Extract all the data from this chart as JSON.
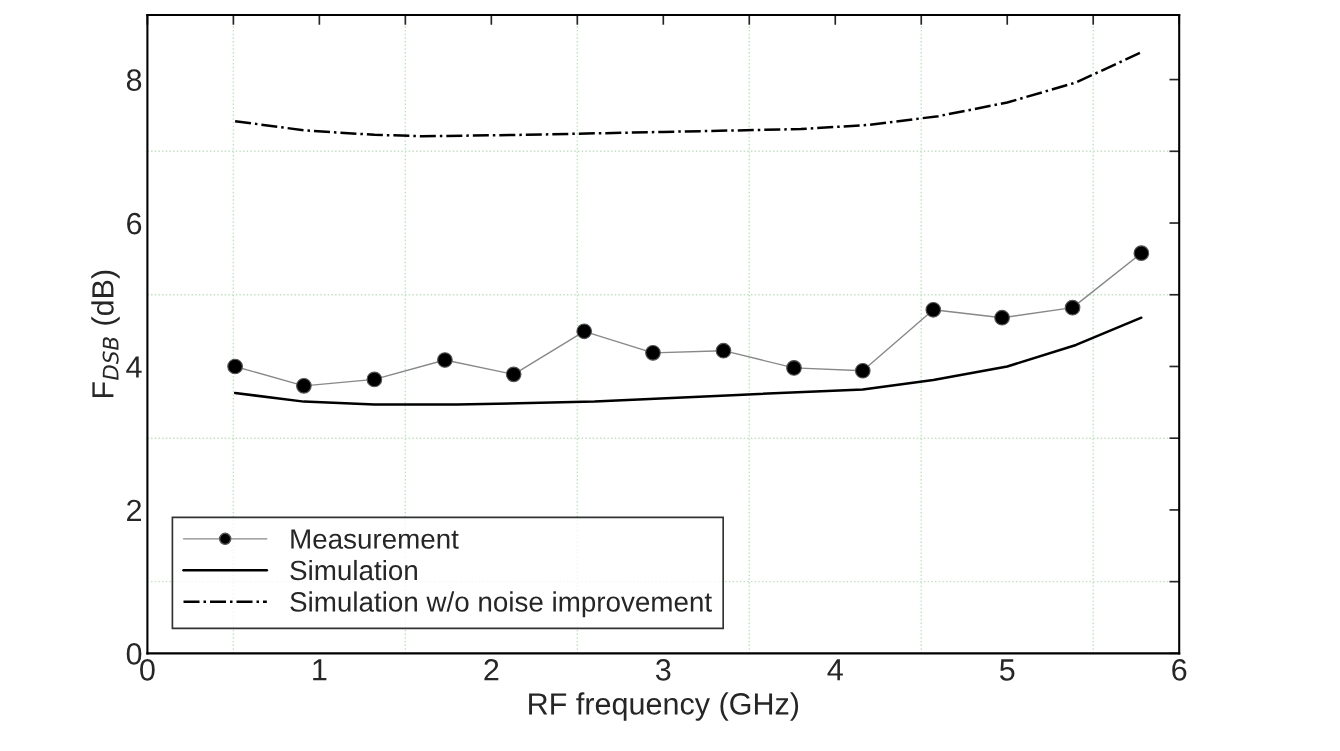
{
  "chart_data": {
    "type": "line",
    "xlabel": "RF frequency (GHz)",
    "ylabel": "F$_{DSB}$ (dB)",
    "xlim": [
      0,
      6
    ],
    "ylim": [
      0,
      8.9
    ],
    "xticks": [
      0,
      {
        "value": 0.5,
        "label": null
      },
      1,
      {
        "value": 1.5,
        "label": null
      },
      2,
      {
        "value": 2.5,
        "label": null
      },
      3,
      {
        "value": 3.5,
        "label": null
      },
      4,
      {
        "value": 4.5,
        "label": null
      },
      5,
      {
        "value": 5.5,
        "label": null
      },
      6
    ],
    "yticks": [
      0,
      {
        "value": 1,
        "label": null
      },
      2,
      {
        "value": 3,
        "label": null
      },
      4,
      {
        "value": 5,
        "label": null
      },
      6,
      {
        "value": 7,
        "label": null
      },
      8
    ],
    "grid": true,
    "legend": "bottom left",
    "series": [
      {
        "name": "Measurement",
        "color": "#000000",
        "marker": "circle",
        "line_style": "solid",
        "x": [
          0.51,
          0.91,
          1.32,
          1.73,
          2.13,
          2.54,
          2.94,
          3.35,
          3.76,
          4.16,
          4.57,
          4.97,
          5.38,
          5.78
        ],
        "values": [
          4.0,
          3.73,
          3.82,
          4.09,
          3.89,
          4.49,
          4.19,
          4.22,
          3.98,
          3.94,
          4.79,
          4.68,
          4.82,
          5.58
        ]
      },
      {
        "name": "Simulation",
        "color": "#000000",
        "marker": "none",
        "line_style": "solid",
        "x": [
          0.51,
          0.91,
          1.32,
          1.8,
          2.6,
          3.4,
          4.16,
          4.57,
          5.0,
          5.4,
          5.78
        ],
        "values": [
          3.63,
          3.51,
          3.47,
          3.47,
          3.51,
          3.6,
          3.68,
          3.81,
          4.0,
          4.3,
          4.68
        ]
      },
      {
        "name": "Simulation w/o noise improvement",
        "color": "#000000",
        "marker": "none",
        "line_style": "dashdot",
        "x": [
          0.51,
          0.92,
          1.32,
          1.6,
          2.2,
          3.0,
          3.8,
          4.2,
          4.6,
          5.0,
          5.4,
          5.78
        ],
        "values": [
          7.42,
          7.29,
          7.23,
          7.21,
          7.23,
          7.27,
          7.31,
          7.37,
          7.49,
          7.68,
          7.96,
          8.38
        ]
      }
    ]
  }
}
